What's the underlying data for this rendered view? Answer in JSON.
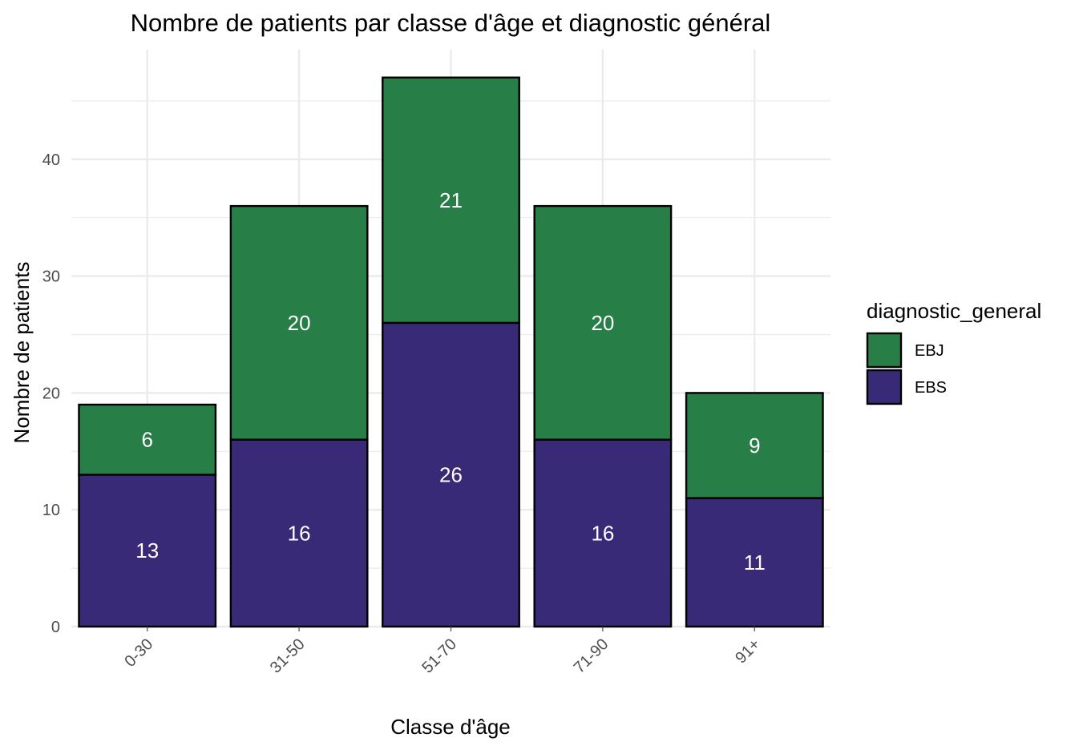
{
  "chart_data": {
    "type": "bar",
    "stacked": true,
    "title": "Nombre de patients par classe d'âge et diagnostic général",
    "xlabel": "Classe d'âge",
    "ylabel": "Nombre de patients",
    "categories": [
      "0-30",
      "31-50",
      "51-70",
      "71-90",
      "91+"
    ],
    "series": [
      {
        "name": "EBS",
        "values": [
          13,
          16,
          26,
          16,
          11
        ],
        "color": "#382a77"
      },
      {
        "name": "EBJ",
        "values": [
          6,
          20,
          21,
          20,
          9
        ],
        "color": "#287e47"
      }
    ],
    "stack_order_bottom_to_top": [
      "EBS",
      "EBJ"
    ],
    "ylim": [
      0,
      49
    ],
    "yticks": [
      0,
      10,
      20,
      30,
      40
    ],
    "grid": true,
    "x_tick_rotation_deg": 45,
    "legend": {
      "title": "diagnostic_general",
      "placement": "right",
      "entries": [
        "EBJ",
        "EBS"
      ]
    },
    "label_color": "#ffffff",
    "bar_outline_color": "#000000",
    "grid_color": "#ebebeb"
  }
}
